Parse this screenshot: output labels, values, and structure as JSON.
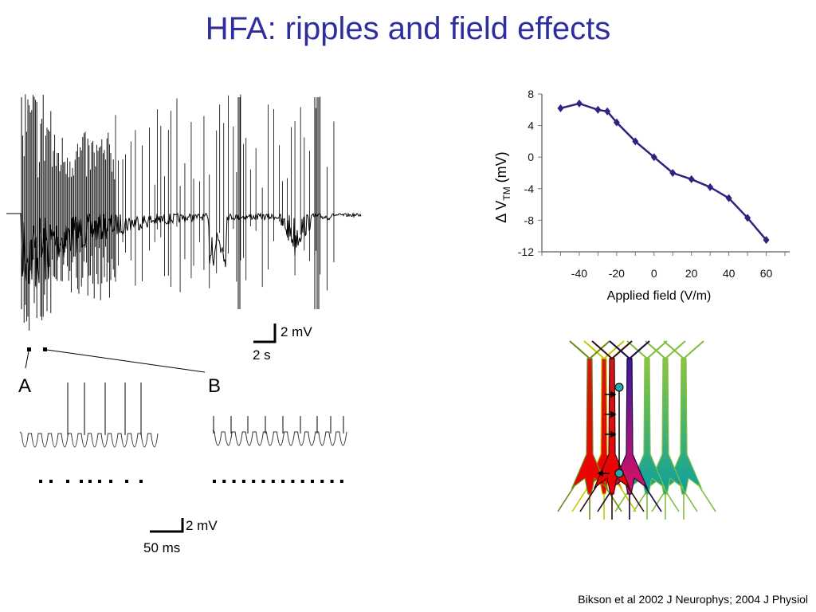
{
  "title": "HFA: ripples and field effects",
  "trace_panel": {
    "scale_top": {
      "voltage": "2 mV",
      "time": "2 s"
    },
    "inset_a": "A",
    "inset_b": "B",
    "scale_bottom": {
      "voltage": "2 mV",
      "time": "50 ms"
    }
  },
  "chart_data": {
    "type": "line",
    "xlabel": "Applied field (V/m)",
    "ylabel_prefix": "Δ V",
    "ylabel_sub": "TM",
    "ylabel_suffix": "(mV)",
    "xlim": [
      -60,
      70
    ],
    "ylim": [
      -12,
      8
    ],
    "xticks": [
      -40,
      -20,
      0,
      20,
      40,
      60
    ],
    "yticks": [
      8,
      4,
      0,
      -4,
      -8,
      -12
    ],
    "series": [
      {
        "color": "#2e2480",
        "x": [
          -50,
          -40,
          -30,
          -25,
          -20,
          -10,
          0,
          10,
          20,
          30,
          40,
          50,
          60
        ],
        "y": [
          6.2,
          6.8,
          6.0,
          5.8,
          4.4,
          2.0,
          0,
          -2.0,
          -2.8,
          -3.8,
          -5.2,
          -7.7,
          -10.5
        ]
      }
    ]
  },
  "citation": "Bikson et al 2002 J Neurophys; 2004 J Physiol"
}
